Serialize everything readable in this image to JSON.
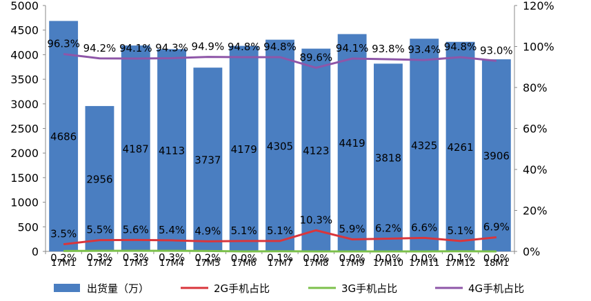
{
  "chart_data": {
    "type": "bar",
    "categories": [
      "17M1",
      "17M2",
      "17M3",
      "17M4",
      "17M5",
      "17M6",
      "17M7",
      "17M8",
      "17M9",
      "17M10",
      "17M11",
      "17M12",
      "18M1"
    ],
    "left_axis": {
      "ticks": [
        "0",
        "500",
        "1000",
        "1500",
        "2000",
        "2500",
        "3000",
        "3500",
        "4000",
        "4500",
        "5000"
      ],
      "ylim": [
        0,
        5000
      ]
    },
    "right_axis": {
      "ticks": [
        "0%",
        "20%",
        "40%",
        "60%",
        "80%",
        "100%",
        "120%"
      ],
      "ylim": [
        0,
        120
      ]
    },
    "bars": {
      "name": "出货量（万）",
      "values": [
        4686,
        2956,
        4187,
        4113,
        3737,
        4179,
        4305,
        4123,
        4419,
        3818,
        4325,
        4261,
        3906
      ],
      "labels": [
        "4686",
        "2956",
        "4187",
        "4113",
        "3737",
        "4179",
        "4305",
        "4123",
        "4419",
        "3818",
        "4325",
        "4261",
        "3906"
      ],
      "color": "#4A7EC1"
    },
    "lines": [
      {
        "name": "2G手机占比",
        "values": [
          3.5,
          5.5,
          5.6,
          5.4,
          4.9,
          5.1,
          5.1,
          10.3,
          5.9,
          6.2,
          6.6,
          5.1,
          6.9
        ],
        "labels": [
          "3.5%",
          "5.5%",
          "5.6%",
          "5.4%",
          "4.9%",
          "5.1%",
          "5.1%",
          "10.3%",
          "5.9%",
          "6.2%",
          "6.6%",
          "5.1%",
          "6.9%"
        ],
        "color": "#D9353B"
      },
      {
        "name": "3G手机占比",
        "values": [
          0.2,
          0.3,
          0.3,
          0.3,
          0.2,
          0.0,
          0.1,
          0.0,
          0.0,
          0.0,
          0.0,
          0.1,
          0.0
        ],
        "labels": [
          "0.2%",
          "0.3%",
          "0.3%",
          "0.3%",
          "0.2%",
          "0.0%",
          "0.1%",
          "0.0%",
          "0.0%",
          "0.0%",
          "0.0%",
          "0.1%",
          "0.0%"
        ],
        "color": "#7CC04B"
      },
      {
        "name": "4G手机占比",
        "values": [
          96.3,
          94.2,
          94.1,
          94.3,
          94.9,
          94.8,
          94.8,
          89.6,
          94.1,
          93.8,
          93.4,
          94.8,
          93.0
        ],
        "labels": [
          "96.3%",
          "94.2%",
          "94.1%",
          "94.3%",
          "94.9%",
          "94.8%",
          "94.8%",
          "89.6%",
          "94.1%",
          "93.8%",
          "93.4%",
          "94.8%",
          "93.0%"
        ],
        "color": "#8E56A8"
      }
    ],
    "legend_position": "bottom",
    "grid": false
  }
}
